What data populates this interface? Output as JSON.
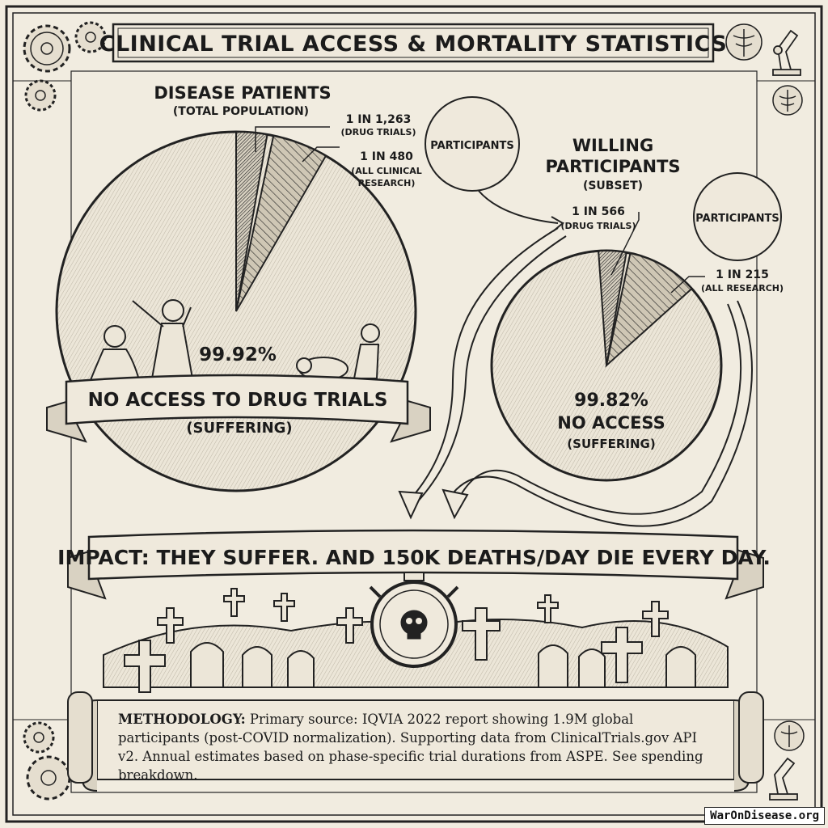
{
  "title": "CLINICAL TRIAL ACCESS & MORTALITY STATISTICS",
  "chart_data": [
    {
      "type": "pie",
      "title": "DISEASE PATIENTS",
      "subtitle": "(TOTAL POPULATION)",
      "callout_bubble": "PARTICIPANTS",
      "slices": [
        {
          "label": "1 IN 1,263",
          "sublabel": "(DRUG TRIALS)",
          "ratio": "1 in 1,263"
        },
        {
          "label": "1 IN 480",
          "sublabel": "(ALL CLINICAL RESEARCH)",
          "sublabel_lines": [
            "(ALL CLINICAL",
            "RESEARCH)"
          ],
          "ratio": "1 in 480"
        },
        {
          "label": "99.92%",
          "value_percent": 99.92,
          "banner": "NO ACCESS TO DRUG TRIALS",
          "note": "(SUFFERING)"
        }
      ]
    },
    {
      "type": "pie",
      "title": "WILLING PARTICIPANTS",
      "title_lines": [
        "WILLING",
        "PARTICIPANTS"
      ],
      "subtitle": "(SUBSET)",
      "callout_bubble": "PARTICIPANTS",
      "slices": [
        {
          "label": "1 IN 566",
          "sublabel": "(DRUG TRIALS)",
          "ratio": "1 in 566"
        },
        {
          "label": "1 IN 215",
          "sublabel": "(ALL RESEARCH)",
          "ratio": "1 in 215"
        },
        {
          "label": "99.82%",
          "value_percent": 99.82,
          "banner": "NO ACCESS",
          "note": "(SUFFERING)"
        }
      ]
    }
  ],
  "impact": {
    "text": "IMPACT: THEY SUFFER. AND 150K DEATHS/DAY DIE EVERY DAY."
  },
  "methodology": {
    "label": "METHODOLOGY:",
    "text": "Primary source: IQVIA 2022 report showing 1.9M global participants (post-COVID normalization). Supporting data from ClinicalTrials.gov API v2. Annual estimates based on phase-specific trial durations from ASPE. See spending breakdown."
  },
  "watermark": "WarOnDisease.org",
  "icons": [
    "gear-icon",
    "caduceus-icon",
    "microscope-icon",
    "skull-clock-icon",
    "grave-cross-icon",
    "tombstone-icon",
    "suffering-figure-icon"
  ],
  "colors": {
    "paper": "#f1ece0",
    "ink": "#1b1b1b"
  }
}
